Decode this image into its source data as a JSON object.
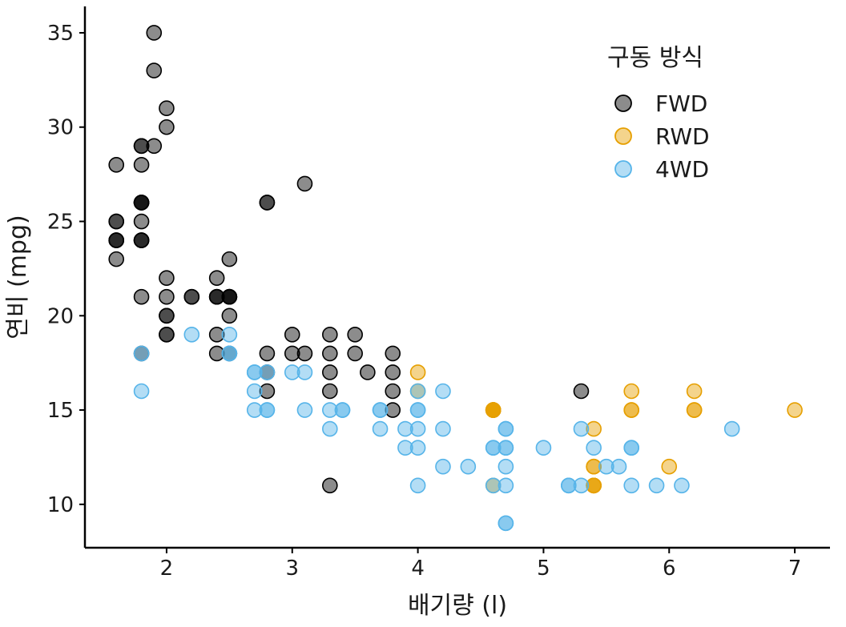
{
  "chart_data": {
    "type": "scatter",
    "title": "",
    "xlabel": "배기량 (l)",
    "ylabel": "연비 (mpg)",
    "xlim": [
      1.35,
      7.28
    ],
    "ylim": [
      7.7,
      36.4
    ],
    "xticks": [
      2,
      3,
      4,
      5,
      6,
      7
    ],
    "yticks": [
      10,
      15,
      20,
      25,
      30,
      35
    ],
    "grid": false,
    "legend": {
      "title": "구동 방식",
      "placement": "top-right"
    },
    "series": [
      {
        "name": "FWD",
        "color": "#000000",
        "points": [
          [
            1.8,
            29
          ],
          [
            1.8,
            29
          ],
          [
            2.0,
            31
          ],
          [
            2.0,
            30
          ],
          [
            2.8,
            26
          ],
          [
            2.8,
            26
          ],
          [
            3.1,
            27
          ],
          [
            2.5,
            23
          ],
          [
            2.5,
            21
          ],
          [
            2.5,
            21
          ],
          [
            2.5,
            21
          ],
          [
            2.5,
            21
          ],
          [
            2.2,
            21
          ],
          [
            2.2,
            21
          ],
          [
            1.8,
            24
          ],
          [
            1.8,
            24
          ],
          [
            1.8,
            24
          ],
          [
            1.8,
            26
          ],
          [
            1.8,
            26
          ],
          [
            1.8,
            26
          ],
          [
            1.8,
            26
          ],
          [
            1.6,
            24
          ],
          [
            1.6,
            24
          ],
          [
            1.6,
            24
          ],
          [
            1.6,
            25
          ],
          [
            1.6,
            25
          ],
          [
            1.6,
            23
          ],
          [
            1.6,
            28
          ],
          [
            1.8,
            28
          ],
          [
            1.8,
            25
          ],
          [
            1.9,
            35
          ],
          [
            1.9,
            33
          ],
          [
            1.9,
            29
          ],
          [
            2.0,
            22
          ],
          [
            2.0,
            21
          ],
          [
            2.0,
            20
          ],
          [
            2.0,
            19
          ],
          [
            2.0,
            19
          ],
          [
            2.4,
            22
          ],
          [
            2.4,
            21
          ],
          [
            2.4,
            19
          ],
          [
            2.4,
            18
          ],
          [
            2.4,
            21
          ],
          [
            2.4,
            21
          ],
          [
            2.5,
            20
          ],
          [
            2.5,
            18
          ],
          [
            3.3,
            18
          ],
          [
            3.3,
            17
          ],
          [
            3.3,
            16
          ],
          [
            3.3,
            19
          ],
          [
            3.3,
            11
          ],
          [
            3.5,
            19
          ],
          [
            3.5,
            18
          ],
          [
            3.8,
            18
          ],
          [
            3.8,
            17
          ],
          [
            3.8,
            16
          ],
          [
            3.8,
            15
          ],
          [
            3.6,
            17
          ],
          [
            3.1,
            18
          ],
          [
            3.0,
            19
          ],
          [
            3.0,
            18
          ],
          [
            2.8,
            18
          ],
          [
            2.8,
            17
          ],
          [
            2.8,
            16
          ],
          [
            5.3,
            16
          ],
          [
            1.8,
            21
          ],
          [
            2.0,
            20
          ],
          [
            1.8,
            18
          ]
        ]
      },
      {
        "name": "RWD",
        "color": "#E69F00",
        "points": [
          [
            5.7,
            15
          ],
          [
            5.7,
            16
          ],
          [
            6.2,
            15
          ],
          [
            6.2,
            16
          ],
          [
            7.0,
            15
          ],
          [
            4.6,
            15
          ],
          [
            5.4,
            12
          ],
          [
            5.4,
            11
          ],
          [
            5.4,
            14
          ],
          [
            4.0,
            17
          ],
          [
            4.6,
            15
          ],
          [
            6.0,
            12
          ],
          [
            5.4,
            11
          ],
          [
            4.6,
            15
          ],
          [
            4.0,
            16
          ],
          [
            4.6,
            15
          ],
          [
            5.4,
            11
          ],
          [
            4.6,
            11
          ],
          [
            5.7,
            15
          ],
          [
            6.2,
            15
          ],
          [
            4.6,
            15
          ],
          [
            5.4,
            12
          ],
          [
            5.4,
            11
          ],
          [
            4.6,
            15
          ],
          [
            4.6,
            15
          ]
        ]
      },
      {
        "name": "4WD",
        "color": "#56B4E9",
        "points": [
          [
            1.8,
            16
          ],
          [
            1.8,
            18
          ],
          [
            2.2,
            19
          ],
          [
            2.5,
            18
          ],
          [
            2.5,
            19
          ],
          [
            2.5,
            18
          ],
          [
            2.7,
            17
          ],
          [
            2.7,
            16
          ],
          [
            2.7,
            15
          ],
          [
            2.8,
            17
          ],
          [
            2.8,
            15
          ],
          [
            3.0,
            17
          ],
          [
            3.1,
            17
          ],
          [
            3.1,
            15
          ],
          [
            3.3,
            15
          ],
          [
            3.3,
            14
          ],
          [
            3.4,
            15
          ],
          [
            3.7,
            15
          ],
          [
            3.7,
            14
          ],
          [
            3.9,
            14
          ],
          [
            3.9,
            13
          ],
          [
            4.0,
            14
          ],
          [
            4.0,
            13
          ],
          [
            4.0,
            15
          ],
          [
            4.0,
            16
          ],
          [
            4.0,
            11
          ],
          [
            4.2,
            16
          ],
          [
            4.2,
            14
          ],
          [
            4.2,
            12
          ],
          [
            4.4,
            12
          ],
          [
            4.6,
            13
          ],
          [
            4.6,
            11
          ],
          [
            4.7,
            14
          ],
          [
            4.7,
            13
          ],
          [
            4.7,
            12
          ],
          [
            4.7,
            11
          ],
          [
            4.7,
            9
          ],
          [
            4.7,
            9
          ],
          [
            5.0,
            13
          ],
          [
            5.2,
            11
          ],
          [
            5.2,
            11
          ],
          [
            5.3,
            14
          ],
          [
            5.3,
            11
          ],
          [
            5.4,
            13
          ],
          [
            5.5,
            12
          ],
          [
            5.6,
            12
          ],
          [
            5.7,
            13
          ],
          [
            5.7,
            11
          ],
          [
            5.9,
            11
          ],
          [
            6.1,
            11
          ],
          [
            6.5,
            14
          ],
          [
            4.7,
            13
          ],
          [
            4.7,
            14
          ],
          [
            5.7,
            13
          ],
          [
            4.0,
            15
          ],
          [
            4.6,
            13
          ],
          [
            3.7,
            15
          ],
          [
            3.4,
            15
          ],
          [
            2.7,
            17
          ],
          [
            2.8,
            15
          ]
        ]
      }
    ]
  }
}
